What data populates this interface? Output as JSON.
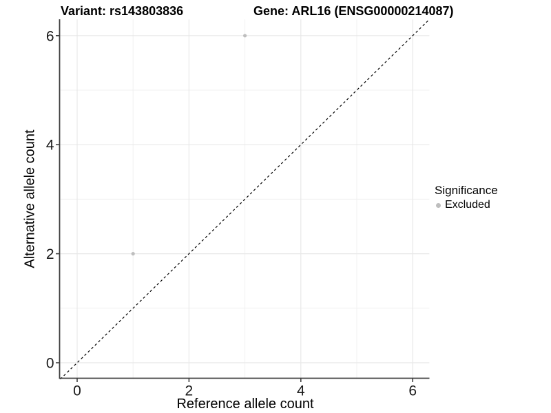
{
  "header": {
    "title_variant": "Variant: rs143803836",
    "title_gene": "Gene: ARL16 (ENSG00000214087)"
  },
  "legend": {
    "title": "Significance",
    "items": [
      {
        "label": "Excluded",
        "color": "#bebebe",
        "marker": "circle"
      }
    ]
  },
  "chart_data": {
    "type": "scatter",
    "title_left": "Variant: rs143803836",
    "title_right": "Gene: ARL16 (ENSG00000214087)",
    "xlabel": "Reference allele count",
    "ylabel": "Alternative allele count",
    "xlim": [
      -0.3,
      6.3
    ],
    "ylim": [
      -0.3,
      6.3
    ],
    "x_ticks": [
      0,
      2,
      4,
      6
    ],
    "y_ticks": [
      0,
      2,
      4,
      6
    ],
    "minor_gridlines": [
      1,
      3,
      5
    ],
    "grid": true,
    "legend_position": "right",
    "series": [
      {
        "name": "Excluded",
        "color": "#bebebe",
        "points": [
          {
            "x": 1,
            "y": 2
          },
          {
            "x": 3,
            "y": 6
          }
        ]
      }
    ],
    "reference_line": {
      "type": "identity",
      "style": "dashed",
      "color": "#000000"
    },
    "colors": {
      "point": "#bebebe",
      "grid_major": "#e8e8e8",
      "grid_minor": "#f0f0f0",
      "axis": "#404040",
      "reference_line": "#000000"
    }
  }
}
